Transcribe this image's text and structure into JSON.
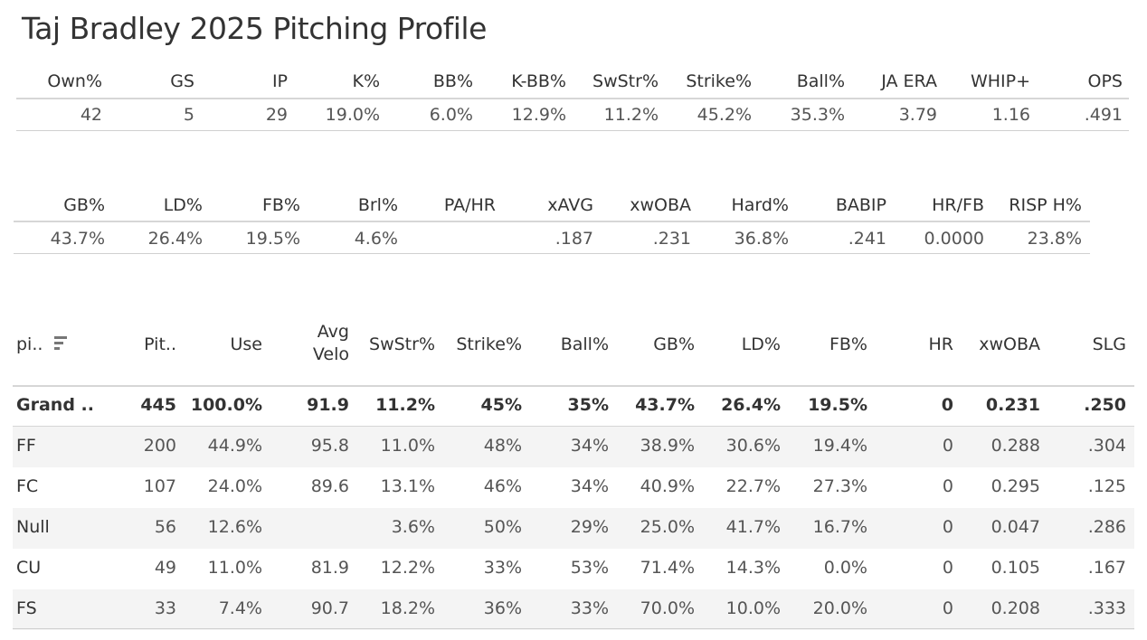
{
  "title": "Taj Bradley 2025 Pitching Profile",
  "summary": {
    "headers": [
      "Own%",
      "GS",
      "IP",
      "K%",
      "BB%",
      "K-BB%",
      "SwStr%",
      "Strike%",
      "Ball%",
      "JA ERA",
      "WHIP+",
      "OPS"
    ],
    "values": [
      "42",
      "5",
      "29",
      "19.0%",
      "6.0%",
      "12.9%",
      "11.2%",
      "45.2%",
      "35.3%",
      "3.79",
      "1.16",
      ".491"
    ]
  },
  "batted": {
    "headers": [
      "GB%",
      "LD%",
      "FB%",
      "Brl%",
      "PA/HR",
      "xAVG",
      "xwOBA",
      "Hard%",
      "BABIP",
      "HR/FB",
      "RISP H%"
    ],
    "values": [
      "43.7%",
      "26.4%",
      "19.5%",
      "4.6%",
      "",
      ".187",
      ".231",
      "36.8%",
      ".241",
      "0.0000",
      "23.8%"
    ]
  },
  "pitches": {
    "sort_icon": "sort-descending-icon",
    "headers": [
      "pi..",
      "Pit..",
      "Use",
      "Avg\nVelo",
      "SwStr%",
      "Strike%",
      "Ball%",
      "GB%",
      "LD%",
      "FB%",
      "HR",
      "xwOBA",
      "SLG"
    ],
    "rows": [
      [
        "Grand ..",
        "445",
        "100.0%",
        "91.9",
        "11.2%",
        "45%",
        "35%",
        "43.7%",
        "26.4%",
        "19.5%",
        "0",
        "0.231",
        ".250"
      ],
      [
        "FF",
        "200",
        "44.9%",
        "95.8",
        "11.0%",
        "48%",
        "34%",
        "38.9%",
        "30.6%",
        "19.4%",
        "0",
        "0.288",
        ".304"
      ],
      [
        "FC",
        "107",
        "24.0%",
        "89.6",
        "13.1%",
        "46%",
        "34%",
        "40.9%",
        "22.7%",
        "27.3%",
        "0",
        "0.295",
        ".125"
      ],
      [
        "Null",
        "56",
        "12.6%",
        "",
        "3.6%",
        "50%",
        "29%",
        "25.0%",
        "41.7%",
        "16.7%",
        "0",
        "0.047",
        ".286"
      ],
      [
        "CU",
        "49",
        "11.0%",
        "81.9",
        "12.2%",
        "33%",
        "53%",
        "71.4%",
        "14.3%",
        "0.0%",
        "0",
        "0.105",
        ".167"
      ],
      [
        "FS",
        "33",
        "7.4%",
        "90.7",
        "18.2%",
        "36%",
        "33%",
        "70.0%",
        "10.0%",
        "20.0%",
        "0",
        "0.208",
        ".333"
      ]
    ]
  }
}
